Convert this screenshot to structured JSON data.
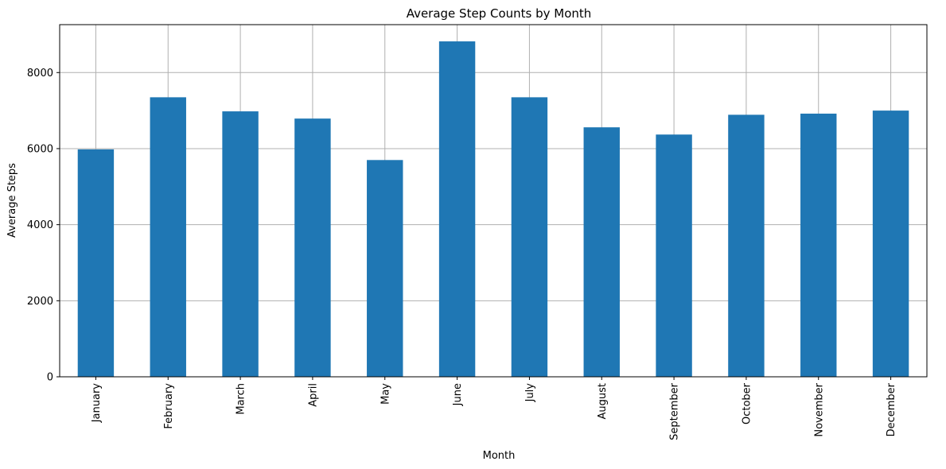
{
  "chart_data": {
    "type": "bar",
    "title": "Average Step Counts by Month",
    "xlabel": "Month",
    "ylabel": "Average Steps",
    "categories": [
      "January",
      "February",
      "March",
      "April",
      "May",
      "June",
      "July",
      "August",
      "September",
      "October",
      "November",
      "December"
    ],
    "values": [
      5980,
      7350,
      6980,
      6790,
      5700,
      8820,
      7350,
      6560,
      6370,
      6890,
      6920,
      7000
    ],
    "yticks": [
      0,
      2000,
      4000,
      6000,
      8000
    ],
    "ylim": [
      0,
      9260
    ],
    "grid": true,
    "bar_color": "#1f77b4"
  }
}
